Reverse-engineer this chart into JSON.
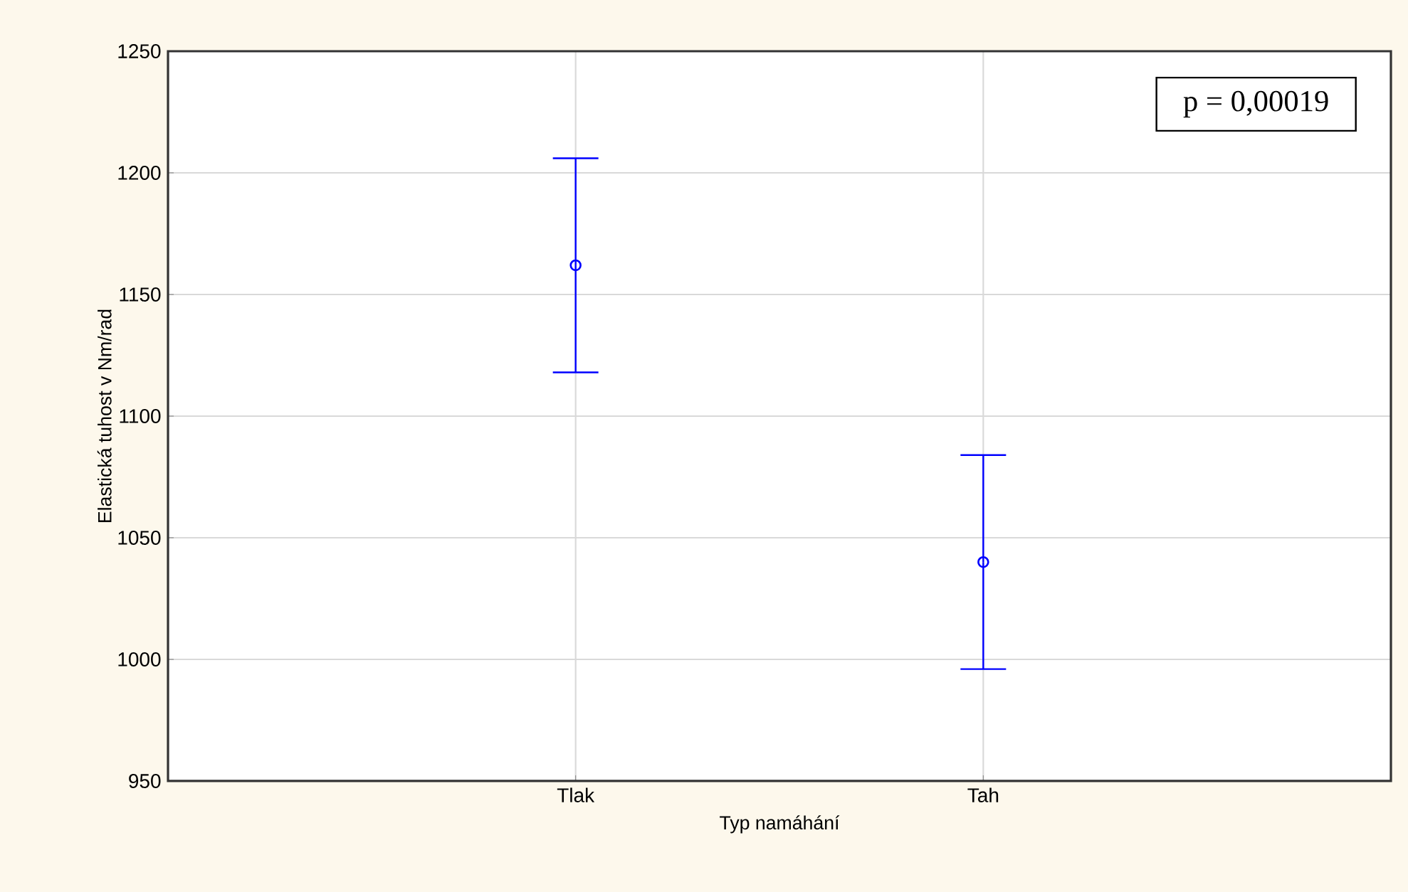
{
  "chart_data": {
    "type": "scatter",
    "xlabel": "Typ namáhání",
    "ylabel": "Elastická tuhost v Nm/rad",
    "categories": [
      "Tlak",
      "Tah"
    ],
    "series": [
      {
        "color": "#0000ff",
        "values": [
          1162,
          1040
        ],
        "errors": [
          44,
          44
        ]
      }
    ],
    "ylim": [
      950,
      1250
    ],
    "yticks": [
      950,
      1000,
      1050,
      1100,
      1150,
      1200,
      1250
    ],
    "grid": true,
    "marker": "circle",
    "annotations": [
      "p = 0,00019"
    ]
  }
}
